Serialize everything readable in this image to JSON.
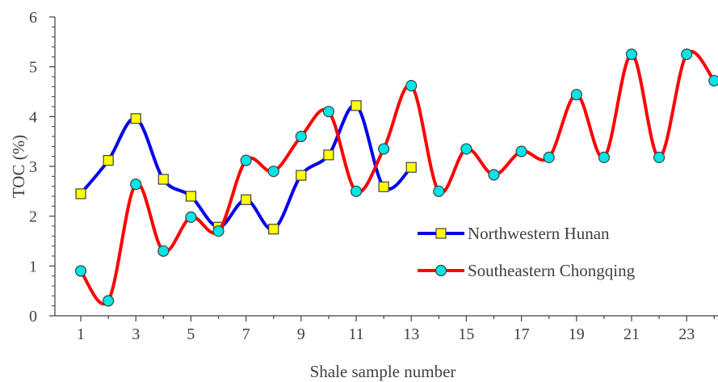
{
  "chart_data": {
    "type": "line",
    "xlabel": "Shale sample number",
    "ylabel": "TOC (%)",
    "x_ticks": [
      "1",
      "3",
      "5",
      "7",
      "9",
      "11",
      "13",
      "15",
      "17",
      "19",
      "21",
      "23"
    ],
    "y_ticks": [
      "0",
      "1",
      "2",
      "3",
      "4",
      "5",
      "6"
    ],
    "xlim": [
      1,
      24
    ],
    "ylim": [
      0,
      6
    ],
    "grid": false,
    "legend_position": "lower-right",
    "series": [
      {
        "name": "Northwestern Hunan",
        "color": "#0000ee",
        "marker": "square",
        "marker_color": "#ffff00",
        "x": [
          1,
          2,
          3,
          4,
          5,
          6,
          7,
          8,
          9,
          10,
          11,
          12,
          13
        ],
        "values": [
          2.45,
          3.12,
          3.96,
          2.74,
          2.4,
          1.78,
          2.33,
          1.74,
          2.82,
          3.23,
          4.22,
          2.59,
          2.98
        ]
      },
      {
        "name": "Southeastern Chongqing",
        "color": "#ff0000",
        "marker": "circle",
        "marker_color": "#00e5e5",
        "x": [
          1,
          2,
          3,
          4,
          5,
          6,
          7,
          8,
          9,
          10,
          11,
          12,
          13,
          14,
          15,
          16,
          17,
          18,
          19,
          20,
          21,
          22,
          23,
          24
        ],
        "values": [
          0.9,
          0.3,
          2.64,
          1.3,
          1.98,
          1.7,
          3.12,
          2.9,
          3.6,
          4.1,
          2.5,
          3.35,
          4.62,
          2.5,
          3.35,
          2.83,
          3.3,
          3.18,
          4.44,
          3.18,
          5.25,
          3.18,
          5.25,
          4.72
        ]
      }
    ]
  }
}
